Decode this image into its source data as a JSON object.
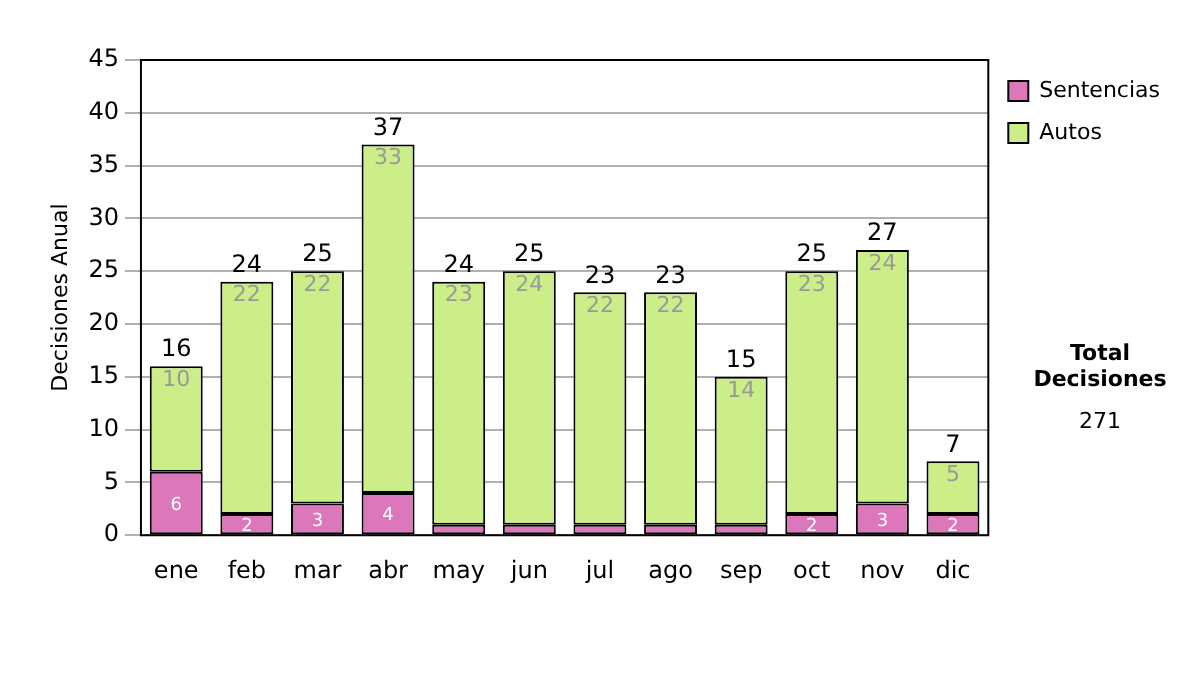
{
  "chart_data": {
    "type": "bar",
    "stacked": true,
    "ylabel": "Decisiones Anual",
    "categories": [
      "ene",
      "feb",
      "mar",
      "abr",
      "may",
      "jun",
      "jul",
      "ago",
      "sep",
      "oct",
      "nov",
      "dic"
    ],
    "series": [
      {
        "name": "Sentencias",
        "color": "#dd77bb",
        "values": [
          6,
          2,
          3,
          4,
          1,
          1,
          1,
          1,
          1,
          2,
          3,
          2
        ],
        "value_labels": [
          "6",
          "2",
          "3",
          "4",
          null,
          null,
          null,
          null,
          null,
          "2",
          "3",
          "2"
        ]
      },
      {
        "name": "Autos",
        "color": "#ccee88",
        "values": [
          10,
          22,
          22,
          33,
          23,
          24,
          22,
          22,
          14,
          23,
          24,
          5
        ],
        "value_labels": [
          "10",
          "22",
          "22",
          "33",
          "23",
          "24",
          "22",
          "22",
          "14",
          "23",
          "24",
          "5"
        ]
      }
    ],
    "totals": [
      "16",
      "24",
      "25",
      "37",
      "24",
      "25",
      "23",
      "23",
      "15",
      "25",
      "27",
      "7"
    ],
    "ylim": [
      0,
      45
    ],
    "yticks": [
      0,
      5,
      10,
      15,
      20,
      25,
      30,
      35,
      40,
      45
    ],
    "grid": "y",
    "legend": "right",
    "annotations": [
      "Total Decisiones",
      "271"
    ]
  }
}
